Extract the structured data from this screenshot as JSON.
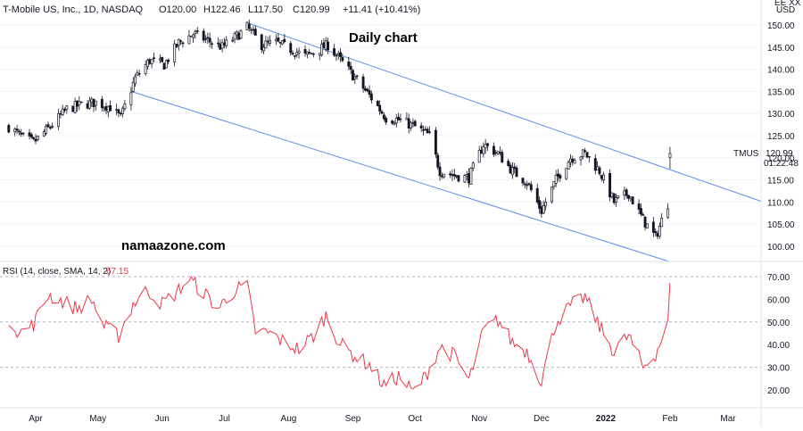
{
  "header": {
    "symbol": "T-Mobile US, Inc., 1D, NASDAQ",
    "open": "O120.00",
    "high": "H122.46",
    "low": "L117.50",
    "close": "C120.99",
    "change": "+11.41 (+10.41%)"
  },
  "currency": "USD",
  "currency_prefix": "EE XX",
  "annotations": {
    "title": "Daily chart",
    "watermark": "namaazone.com"
  },
  "last_price": {
    "ticker": "TMUS",
    "value": "120.99",
    "countdown": "01:22:48"
  },
  "rsi_label": {
    "params": "RSI (14, close, SMA, 14, 2)",
    "value": "67.15"
  },
  "colors": {
    "up": "#131722",
    "down": "#131722",
    "channel": "#5b8def",
    "rsi": "#f23645",
    "grid": "#b2b5be"
  },
  "chart_data": [
    {
      "type": "candlestick",
      "title": "T-Mobile US, Inc., 1D, NASDAQ",
      "x_ticks": [
        "Apr",
        "May",
        "Jun",
        "Jul",
        "Aug",
        "Sep",
        "Oct",
        "Nov",
        "Dec",
        "2022",
        "Feb",
        "Mar"
      ],
      "y_ticks": [
        100,
        105,
        110,
        115,
        120,
        125,
        130,
        135,
        140,
        145,
        150
      ],
      "ylim": [
        97,
        152
      ],
      "close_path": [
        [
          "2021-03-19",
          127.0
        ],
        [
          "2021-03-26",
          124.5
        ],
        [
          "2021-03-31",
          123.5
        ],
        [
          "2021-04-09",
          127.5
        ],
        [
          "2021-04-16",
          131.0
        ],
        [
          "2021-04-23",
          132.0
        ],
        [
          "2021-04-30",
          132.5
        ],
        [
          "2021-05-07",
          131.5
        ],
        [
          "2021-05-12",
          129.0
        ],
        [
          "2021-05-19",
          138.0
        ],
        [
          "2021-05-26",
          142.0
        ],
        [
          "2021-06-02",
          141.0
        ],
        [
          "2021-06-09",
          146.0
        ],
        [
          "2021-06-16",
          148.0
        ],
        [
          "2021-06-23",
          146.5
        ],
        [
          "2021-06-30",
          145.0
        ],
        [
          "2021-07-07",
          147.5
        ],
        [
          "2021-07-12",
          149.5
        ],
        [
          "2021-07-19",
          145.5
        ],
        [
          "2021-07-26",
          146.0
        ],
        [
          "2021-08-02",
          144.5
        ],
        [
          "2021-08-09",
          143.0
        ],
        [
          "2021-08-16",
          144.5
        ],
        [
          "2021-08-20",
          145.5
        ],
        [
          "2021-08-27",
          141.5
        ],
        [
          "2021-09-03",
          137.5
        ],
        [
          "2021-09-10",
          133.5
        ],
        [
          "2021-09-17",
          129.0
        ],
        [
          "2021-09-24",
          128.5
        ],
        [
          "2021-10-01",
          127.0
        ],
        [
          "2021-10-08",
          125.0
        ],
        [
          "2021-10-13",
          117.0
        ],
        [
          "2021-10-20",
          116.0
        ],
        [
          "2021-10-27",
          115.5
        ],
        [
          "2021-11-03",
          123.0
        ],
        [
          "2021-11-10",
          121.0
        ],
        [
          "2021-11-17",
          117.0
        ],
        [
          "2021-11-24",
          114.5
        ],
        [
          "2021-12-01",
          108.0
        ],
        [
          "2021-12-08",
          115.0
        ],
        [
          "2021-12-15",
          120.0
        ],
        [
          "2021-12-22",
          121.0
        ],
        [
          "2021-12-29",
          117.0
        ],
        [
          "2022-01-05",
          110.0
        ],
        [
          "2022-01-12",
          112.0
        ],
        [
          "2022-01-19",
          106.0
        ],
        [
          "2022-01-25",
          102.0
        ],
        [
          "2022-01-31",
          109.58
        ],
        [
          "2022-02-01",
          120.99
        ]
      ],
      "last": {
        "open": 120.0,
        "high": 122.46,
        "low": 117.5,
        "close": 120.99,
        "change": 11.41,
        "change_pct": 10.41
      },
      "channel": {
        "upper": [
          [
            "2021-07-12",
            150.5
          ],
          [
            "2022-03-21",
            109.5
          ]
        ],
        "lower": [
          [
            "2021-05-17",
            135.0
          ],
          [
            "2022-02-01",
            96.5
          ]
        ]
      }
    },
    {
      "type": "line",
      "title": "RSI (14, close, SMA, 14, 2)",
      "y_ticks": [
        20,
        30,
        40,
        50,
        60,
        70
      ],
      "ylim": [
        13,
        77
      ],
      "bands": [
        30,
        50,
        70
      ],
      "last_value": 67.15,
      "series": [
        {
          "values": [
            [
              "2021-03-19",
              52
            ],
            [
              "2021-03-24",
              45
            ],
            [
              "2021-03-31",
              49
            ],
            [
              "2021-04-07",
              62
            ],
            [
              "2021-04-14",
              59
            ],
            [
              "2021-04-21",
              56
            ],
            [
              "2021-04-28",
              60
            ],
            [
              "2021-05-04",
              48
            ],
            [
              "2021-05-11",
              44
            ],
            [
              "2021-05-18",
              58
            ],
            [
              "2021-05-25",
              64
            ],
            [
              "2021-06-01",
              58
            ],
            [
              "2021-06-08",
              63
            ],
            [
              "2021-06-14",
              69
            ],
            [
              "2021-06-21",
              63
            ],
            [
              "2021-06-28",
              56
            ],
            [
              "2021-07-06",
              64
            ],
            [
              "2021-07-12",
              66
            ],
            [
              "2021-07-16",
              46
            ],
            [
              "2021-07-23",
              45
            ],
            [
              "2021-07-30",
              41
            ],
            [
              "2021-08-06",
              38
            ],
            [
              "2021-08-13",
              44
            ],
            [
              "2021-08-19",
              53
            ],
            [
              "2021-08-26",
              40
            ],
            [
              "2021-09-02",
              35
            ],
            [
              "2021-09-09",
              31
            ],
            [
              "2021-09-16",
              22
            ],
            [
              "2021-09-23",
              26
            ],
            [
              "2021-09-30",
              19
            ],
            [
              "2021-10-06",
              26
            ],
            [
              "2021-10-13",
              39
            ],
            [
              "2021-10-20",
              35
            ],
            [
              "2021-10-27",
              24
            ],
            [
              "2021-11-03",
              46
            ],
            [
              "2021-11-10",
              51
            ],
            [
              "2021-11-17",
              41
            ],
            [
              "2021-11-24",
              37
            ],
            [
              "2021-12-01",
              24
            ],
            [
              "2021-12-08",
              50
            ],
            [
              "2021-12-15",
              57
            ],
            [
              "2021-12-22",
              61
            ],
            [
              "2021-12-29",
              48
            ],
            [
              "2022-01-05",
              37
            ],
            [
              "2022-01-12",
              44
            ],
            [
              "2022-01-19",
              30
            ],
            [
              "2022-01-25",
              36
            ],
            [
              "2022-01-31",
              49
            ],
            [
              "2022-02-01",
              67.15
            ]
          ]
        }
      ]
    }
  ]
}
